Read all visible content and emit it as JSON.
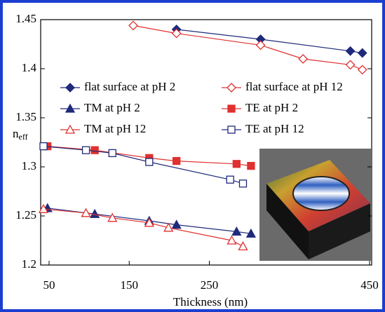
{
  "chart_data": {
    "type": "line",
    "x_label": "Thickness (nm)",
    "y_label": "n",
    "y_label_sub": "eff",
    "xlim": [
      50,
      450
    ],
    "xticks": [
      50,
      150,
      250,
      450
    ],
    "ylim": [
      1.2,
      1.45
    ],
    "yticks": [
      1.2,
      1.25,
      1.3,
      1.35,
      1.4,
      1.45
    ],
    "series": [
      {
        "name": "flat surface at pH 2",
        "color": "#1f2a7a",
        "marker": "diamond",
        "filled": true,
        "x": [
          209,
          314,
          426,
          441
        ],
        "values": [
          1.44,
          1.43,
          1.418,
          1.416
        ]
      },
      {
        "name": "flat surface at pH 12",
        "color": "#e03030",
        "marker": "diamond",
        "filled": false,
        "x": [
          155,
          209,
          314,
          367,
          426,
          441
        ],
        "values": [
          1.444,
          1.436,
          1.424,
          1.41,
          1.404,
          1.399
        ]
      },
      {
        "name": "TM at pH 2",
        "color": "#1f2a7a",
        "marker": "triangle",
        "filled": true,
        "x": [
          48,
          107,
          175,
          209,
          284,
          302
        ],
        "values": [
          1.258,
          1.252,
          1.245,
          1.241,
          1.234,
          1.232
        ]
      },
      {
        "name": "TE at pH 2",
        "color": "#e03030",
        "marker": "square",
        "filled": true,
        "x": [
          48,
          107,
          175,
          209,
          284,
          302
        ],
        "values": [
          1.321,
          1.317,
          1.309,
          1.306,
          1.303,
          1.301
        ]
      },
      {
        "name": "TM at pH 12",
        "color": "#e03030",
        "marker": "triangle",
        "filled": false,
        "x": [
          43,
          96,
          129,
          175,
          199,
          278,
          292
        ],
        "values": [
          1.257,
          1.253,
          1.248,
          1.243,
          1.238,
          1.225,
          1.219
        ]
      },
      {
        "name": "TE at pH 12",
        "color": "#1f2a7a",
        "marker": "square",
        "filled": false,
        "x": [
          43,
          96,
          129,
          175,
          276,
          292
        ],
        "values": [
          1.321,
          1.317,
          1.314,
          1.305,
          1.287,
          1.283
        ]
      }
    ]
  }
}
